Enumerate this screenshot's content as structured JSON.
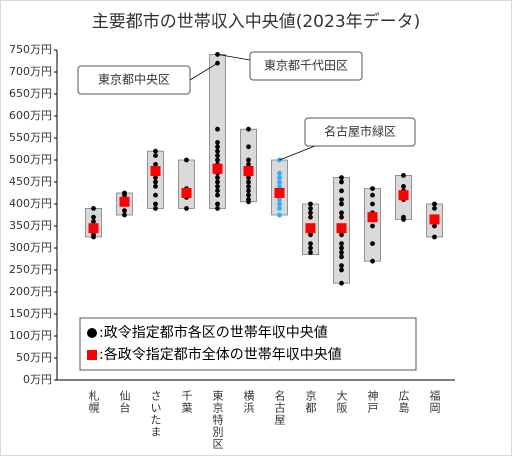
{
  "chart_data": {
    "type": "range_dot",
    "title": "主要都市の世帯収入中央値(2023年データ)",
    "categories": [
      "札幌",
      "仙台",
      "さいたま",
      "千葉",
      "東京特別区",
      "横浜",
      "名古屋",
      "京都",
      "大阪",
      "神戸",
      "広島",
      "福岡"
    ],
    "ylim": [
      0,
      750
    ],
    "yticks": [
      {
        "value": 0,
        "label": "0万円"
      },
      {
        "value": 50,
        "label": "50万円"
      },
      {
        "value": 100,
        "label": "100万円"
      },
      {
        "value": 150,
        "label": "150万円"
      },
      {
        "value": 200,
        "label": "200万円"
      },
      {
        "value": 250,
        "label": "250万円"
      },
      {
        "value": 300,
        "label": "300万円"
      },
      {
        "value": 350,
        "label": "350万円"
      },
      {
        "value": 400,
        "label": "400万円"
      },
      {
        "value": 450,
        "label": "450万円"
      },
      {
        "value": 500,
        "label": "500万円"
      },
      {
        "value": 550,
        "label": "550万円"
      },
      {
        "value": 600,
        "label": "600万円"
      },
      {
        "value": 650,
        "label": "650万円"
      },
      {
        "value": 700,
        "label": "700万円"
      },
      {
        "value": 750,
        "label": "750万円"
      }
    ],
    "box_color": "#d9d9d9",
    "box_min": [
      325,
      375,
      390,
      390,
      390,
      405,
      375,
      285,
      220,
      270,
      365,
      325
    ],
    "box_max": [
      390,
      425,
      520,
      500,
      740,
      570,
      500,
      400,
      460,
      435,
      465,
      400
    ],
    "series": [
      {
        "name": ":政令指定都市各区の世帯年収中央値",
        "color": "#000000",
        "colors": [
          "#000000",
          "#000000",
          "#000000",
          "#000000",
          "#000000",
          "#000000",
          "#33aaff",
          "#000000",
          "#000000",
          "#000000",
          "#000000",
          "#000000"
        ],
        "values": [
          [
            390,
            370,
            360,
            350,
            340,
            330,
            325
          ],
          [
            425,
            420,
            400,
            385,
            375
          ],
          [
            520,
            510,
            490,
            480,
            470,
            460,
            450,
            440,
            420,
            400,
            390
          ],
          [
            500,
            435,
            425,
            420,
            415,
            390
          ],
          [
            740,
            720,
            570,
            540,
            530,
            520,
            510,
            500,
            490,
            480,
            470,
            460,
            450,
            440,
            430,
            420,
            400,
            390
          ],
          [
            570,
            530,
            500,
            490,
            480,
            470,
            460,
            450,
            440,
            430,
            420,
            410,
            405
          ],
          [
            500,
            470,
            460,
            450,
            440,
            430,
            420,
            410,
            400,
            390,
            375
          ],
          [
            400,
            390,
            380,
            370,
            350,
            330,
            310,
            300,
            290
          ],
          [
            460,
            450,
            430,
            410,
            400,
            380,
            370,
            350,
            330,
            310,
            300,
            290,
            280,
            260,
            250,
            220
          ],
          [
            435,
            420,
            400,
            380,
            350,
            310,
            270
          ],
          [
            465,
            440,
            430,
            420,
            410,
            370,
            365
          ],
          [
            400,
            390,
            370,
            350,
            325
          ]
        ]
      },
      {
        "name": ":各政令指定都市全体の世帯年収中央値",
        "color": "#ff0000",
        "values": [
          345,
          405,
          475,
          425,
          480,
          475,
          425,
          345,
          345,
          370,
          420,
          365
        ]
      }
    ],
    "annotations": [
      {
        "text": "東京都中央区",
        "x": "東京特別区",
        "y": 720
      },
      {
        "text": "東京都千代田区",
        "x": "東京特別区",
        "y": 740
      },
      {
        "text": "名古屋市緑区",
        "x": "名古屋",
        "y": 500
      }
    ]
  }
}
